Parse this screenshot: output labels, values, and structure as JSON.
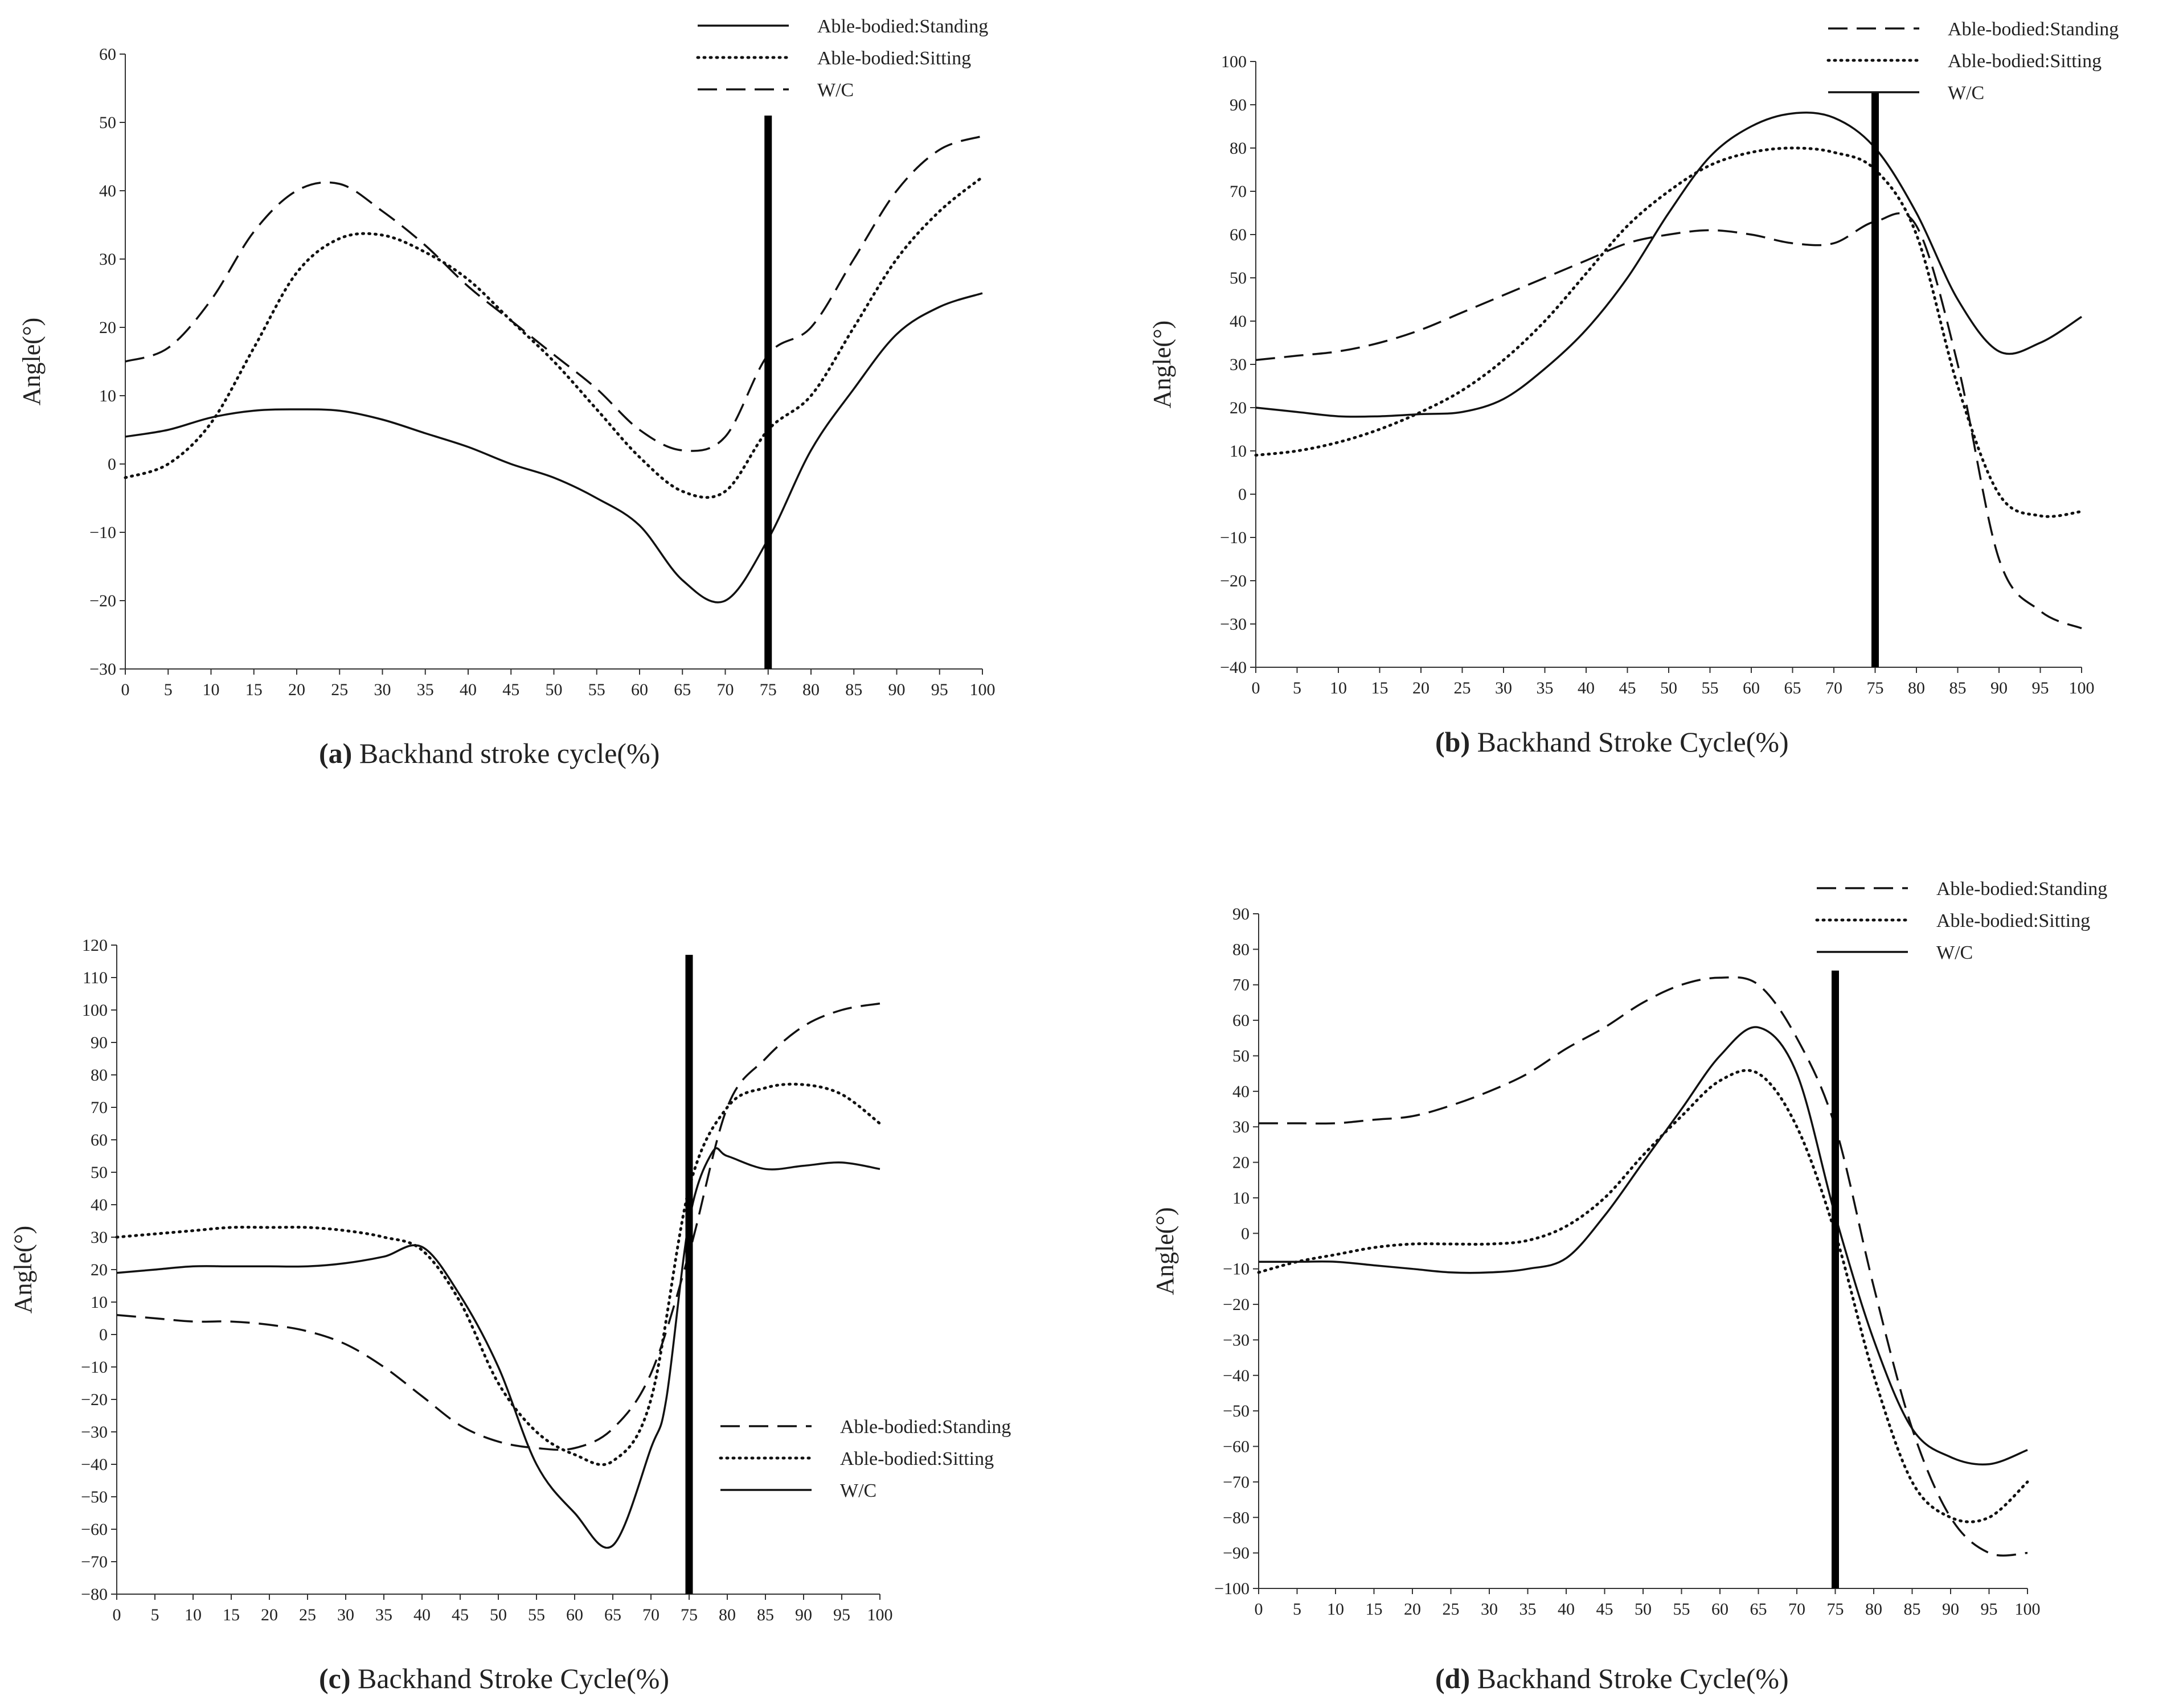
{
  "chart_data": [
    {
      "id": "a",
      "type": "line",
      "caption_letter": "(a)",
      "xlabel": "Backhand stroke cycle(%)",
      "ylabel": "Angle(°)",
      "xlim": [
        0,
        100
      ],
      "ylim": [
        -30,
        60
      ],
      "xticks": [
        0,
        5,
        10,
        15,
        20,
        25,
        30,
        35,
        40,
        45,
        50,
        55,
        60,
        65,
        70,
        75,
        80,
        85,
        90,
        95,
        100
      ],
      "yticks": [
        -30,
        -20,
        -10,
        0,
        10,
        20,
        30,
        40,
        50,
        60
      ],
      "event_line": {
        "x": 75,
        "y_from": -30,
        "y_to": 51
      },
      "legend": [
        {
          "label": "Able-bodied:Standing",
          "style": "solid"
        },
        {
          "label": "Able-bodied:Sitting",
          "style": "dotted"
        },
        {
          "label": "W/C",
          "style": "dashed"
        }
      ],
      "series": [
        {
          "style": "solid",
          "x": [
            0,
            5,
            10,
            15,
            20,
            25,
            30,
            35,
            40,
            45,
            50,
            55,
            60,
            65,
            70,
            75,
            80,
            85,
            90,
            95,
            100
          ],
          "y": [
            4,
            5,
            6.8,
            7.8,
            8,
            7.8,
            6.5,
            4.5,
            2.5,
            0,
            -2,
            -5,
            -9,
            -17,
            -20,
            -11,
            2,
            11,
            19,
            23,
            25
          ]
        },
        {
          "style": "dotted",
          "x": [
            0,
            5,
            10,
            15,
            20,
            25,
            30,
            35,
            40,
            45,
            50,
            55,
            60,
            65,
            70,
            75,
            80,
            85,
            90,
            95,
            100
          ],
          "y": [
            -2,
            0,
            6,
            17,
            28,
            33,
            33.5,
            31,
            27,
            21,
            15,
            8,
            1,
            -4,
            -4,
            5,
            10,
            20,
            30,
            37,
            42
          ]
        },
        {
          "style": "dashed",
          "x": [
            0,
            5,
            10,
            15,
            20,
            25,
            30,
            35,
            40,
            45,
            50,
            55,
            60,
            65,
            70,
            75,
            80,
            85,
            90,
            95,
            100
          ],
          "y": [
            15,
            17,
            24,
            34,
            40,
            41,
            37,
            32,
            26,
            21,
            16,
            11,
            5,
            2,
            4,
            16,
            20,
            30,
            40,
            46,
            48
          ]
        }
      ]
    },
    {
      "id": "b",
      "type": "line",
      "caption_letter": "(b)",
      "xlabel": "Backhand Stroke Cycle(%)",
      "ylabel": "Angle(°)",
      "xlim": [
        0,
        100
      ],
      "ylim": [
        -40,
        100
      ],
      "xticks": [
        0,
        5,
        10,
        15,
        20,
        25,
        30,
        35,
        40,
        45,
        50,
        55,
        60,
        65,
        70,
        75,
        80,
        85,
        90,
        95,
        100
      ],
      "yticks": [
        -40,
        -30,
        -20,
        -10,
        0,
        10,
        20,
        30,
        40,
        50,
        60,
        70,
        80,
        90,
        100
      ],
      "event_line": {
        "x": 75,
        "y_from": -40,
        "y_to": 93
      },
      "legend": [
        {
          "label": "Able-bodied:Standing",
          "style": "dashed"
        },
        {
          "label": "Able-bodied:Sitting",
          "style": "dotted"
        },
        {
          "label": "W/C",
          "style": "solid"
        }
      ],
      "series": [
        {
          "style": "dashed",
          "x": [
            0,
            5,
            10,
            15,
            20,
            25,
            30,
            35,
            40,
            45,
            50,
            55,
            60,
            65,
            70,
            75,
            80,
            85,
            90,
            95,
            100
          ],
          "y": [
            31,
            32,
            33,
            35,
            38,
            42,
            46,
            50,
            54,
            58,
            60,
            61,
            60,
            58,
            58,
            63,
            62,
            30,
            -15,
            -27,
            -31
          ]
        },
        {
          "style": "dotted",
          "x": [
            0,
            5,
            10,
            15,
            20,
            25,
            30,
            35,
            40,
            45,
            50,
            55,
            60,
            65,
            70,
            75,
            80,
            85,
            90,
            95,
            100
          ],
          "y": [
            9,
            10,
            12,
            15,
            19,
            24,
            31,
            40,
            51,
            62,
            70,
            76,
            79,
            80,
            79,
            75,
            60,
            25,
            0,
            -5,
            -4
          ]
        },
        {
          "style": "solid",
          "x": [
            0,
            5,
            10,
            15,
            20,
            25,
            30,
            35,
            40,
            45,
            50,
            55,
            60,
            65,
            70,
            75,
            80,
            85,
            90,
            95,
            100
          ],
          "y": [
            20,
            19,
            18,
            18,
            18.5,
            19,
            22,
            29,
            38,
            50,
            65,
            78,
            85,
            88,
            87,
            80,
            65,
            45,
            33,
            35,
            41
          ]
        }
      ]
    },
    {
      "id": "c",
      "type": "line",
      "caption_letter": "(c)",
      "xlabel": "Backhand Stroke Cycle(%)",
      "ylabel": "Angle(°)",
      "xlim": [
        0,
        100
      ],
      "ylim": [
        -80,
        120
      ],
      "xticks": [
        0,
        5,
        10,
        15,
        20,
        25,
        30,
        35,
        40,
        45,
        50,
        55,
        60,
        65,
        70,
        75,
        80,
        85,
        90,
        95,
        100
      ],
      "yticks": [
        -80,
        -70,
        -60,
        -50,
        -40,
        -30,
        -20,
        -10,
        0,
        10,
        20,
        30,
        40,
        50,
        60,
        70,
        80,
        90,
        100,
        110,
        120
      ],
      "event_line": {
        "x": 75,
        "y_from": -80,
        "y_to": 117
      },
      "legend": [
        {
          "label": "Able-bodied:Standing",
          "style": "dashed"
        },
        {
          "label": "Able-bodied:Sitting",
          "style": "dotted"
        },
        {
          "label": "W/C",
          "style": "solid"
        }
      ],
      "series": [
        {
          "style": "dashed",
          "x": [
            0,
            5,
            10,
            15,
            20,
            25,
            30,
            35,
            40,
            45,
            50,
            55,
            60,
            65,
            70,
            75,
            80,
            85,
            90,
            95,
            100
          ],
          "y": [
            6,
            5,
            4,
            4,
            3,
            1,
            -3,
            -10,
            -19,
            -28,
            -33,
            -35,
            -35,
            -29,
            -12,
            25,
            70,
            85,
            95,
            100,
            102
          ]
        },
        {
          "style": "dotted",
          "x": [
            0,
            5,
            10,
            15,
            20,
            25,
            30,
            35,
            40,
            45,
            50,
            55,
            60,
            65,
            70,
            75,
            80,
            85,
            90,
            95,
            100
          ],
          "y": [
            30,
            31,
            32,
            33,
            33,
            33,
            32,
            30,
            26,
            10,
            -15,
            -30,
            -37,
            -39,
            -20,
            45,
            70,
            76,
            77,
            74,
            65
          ]
        },
        {
          "style": "solid",
          "x": [
            0,
            5,
            10,
            15,
            20,
            25,
            30,
            35,
            40,
            45,
            50,
            55,
            60,
            65,
            70,
            72,
            75,
            78,
            80,
            85,
            90,
            95,
            100
          ],
          "y": [
            19,
            20,
            21,
            21,
            21,
            21,
            22,
            24,
            27,
            12,
            -10,
            -40,
            -55,
            -65,
            -35,
            -20,
            35,
            56,
            55,
            51,
            52,
            53,
            51
          ]
        }
      ]
    },
    {
      "id": "d",
      "type": "line",
      "caption_letter": "(d)",
      "xlabel": "Backhand Stroke Cycle(%)",
      "ylabel": "Angle(°)",
      "xlim": [
        0,
        100
      ],
      "ylim": [
        -100,
        90
      ],
      "xticks": [
        0,
        5,
        10,
        15,
        20,
        25,
        30,
        35,
        40,
        45,
        50,
        55,
        60,
        65,
        70,
        75,
        80,
        85,
        90,
        95,
        100
      ],
      "yticks": [
        -100,
        -90,
        -80,
        -70,
        -60,
        -50,
        -40,
        -30,
        -20,
        -10,
        0,
        10,
        20,
        30,
        40,
        50,
        60,
        70,
        80,
        90
      ],
      "event_line": {
        "x": 75,
        "y_from": -100,
        "y_to": 74
      },
      "legend": [
        {
          "label": "Able-bodied:Standing",
          "style": "dashed"
        },
        {
          "label": "Able-bodied:Sitting",
          "style": "dotted"
        },
        {
          "label": "W/C",
          "style": "solid"
        }
      ],
      "series": [
        {
          "style": "dashed",
          "x": [
            0,
            5,
            10,
            15,
            20,
            25,
            30,
            35,
            40,
            45,
            50,
            55,
            60,
            65,
            70,
            75,
            80,
            85,
            90,
            95,
            100
          ],
          "y": [
            31,
            31,
            31,
            32,
            33,
            36,
            40,
            45,
            52,
            58,
            65,
            70,
            72,
            70,
            55,
            30,
            -15,
            -55,
            -80,
            -90,
            -90
          ]
        },
        {
          "style": "dotted",
          "x": [
            0,
            5,
            10,
            15,
            20,
            25,
            30,
            35,
            40,
            45,
            50,
            55,
            60,
            65,
            70,
            75,
            80,
            85,
            90,
            95,
            100
          ],
          "y": [
            -11,
            -8,
            -6,
            -4,
            -3,
            -3,
            -3,
            -2,
            2,
            10,
            22,
            33,
            43,
            45,
            30,
            0,
            -40,
            -70,
            -80,
            -80,
            -70
          ]
        },
        {
          "style": "solid",
          "x": [
            0,
            5,
            10,
            15,
            20,
            25,
            30,
            35,
            40,
            45,
            50,
            55,
            60,
            65,
            70,
            75,
            80,
            85,
            90,
            95,
            100
          ],
          "y": [
            -8,
            -8,
            -8,
            -9,
            -10,
            -11,
            -11,
            -10,
            -7,
            5,
            20,
            35,
            50,
            58,
            45,
            5,
            -30,
            -55,
            -63,
            -65,
            -61
          ]
        }
      ]
    }
  ]
}
